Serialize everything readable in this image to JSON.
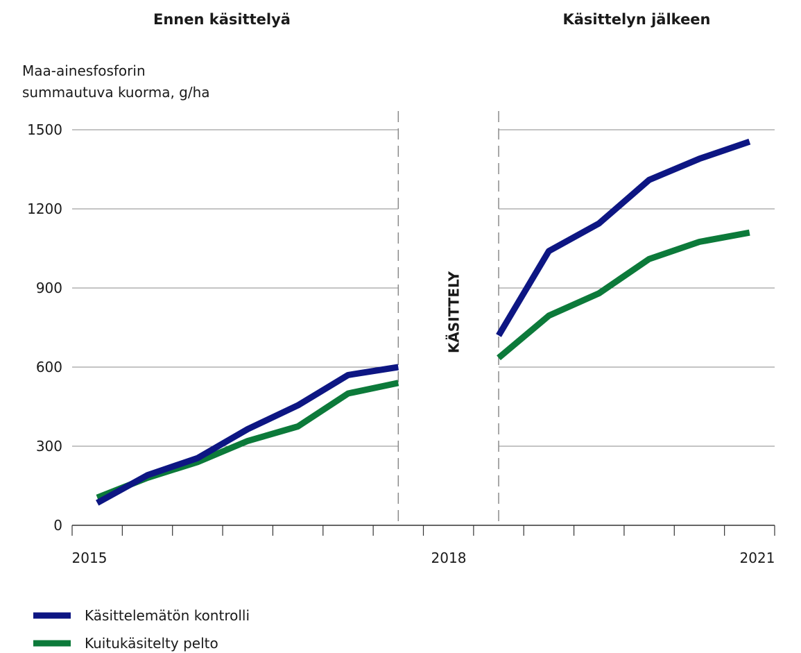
{
  "chart_data": {
    "type": "line",
    "panel_titles": [
      "Ennen käsittelyä",
      "Käsittelyn jälkeen"
    ],
    "ylabel_lines": [
      "Maa-ainesfosforin",
      "summautuva kuorma, g/ha"
    ],
    "treatment_label": "KÄSITTELY",
    "x_tick_labels": [
      "2015",
      "2018",
      "2021"
    ],
    "xlim": [
      0,
      28
    ],
    "ylim": [
      0,
      1500
    ],
    "y_ticks": [
      0,
      300,
      600,
      900,
      1200,
      1500
    ],
    "grid": true,
    "legend_position": "bottom-left",
    "segments": [
      [
        0.5,
        13
      ],
      [
        17,
        27
      ]
    ],
    "series": [
      {
        "name": "Käsittelemätön kontrolli",
        "color": "#0d1683",
        "x": [
          1,
          3,
          5,
          7,
          9,
          11,
          13,
          17,
          19,
          21,
          23,
          25,
          27
        ],
        "values": [
          85,
          190,
          255,
          365,
          455,
          570,
          600,
          720,
          1040,
          1145,
          1310,
          1390,
          1455
        ]
      },
      {
        "name": "Kuitukäsitelty pelto",
        "color": "#0c7a3a",
        "x": [
          1,
          3,
          5,
          7,
          9,
          11,
          13,
          17,
          19,
          21,
          23,
          25,
          27
        ],
        "values": [
          105,
          180,
          240,
          320,
          375,
          500,
          540,
          635,
          795,
          880,
          1010,
          1075,
          1110
        ]
      }
    ]
  }
}
